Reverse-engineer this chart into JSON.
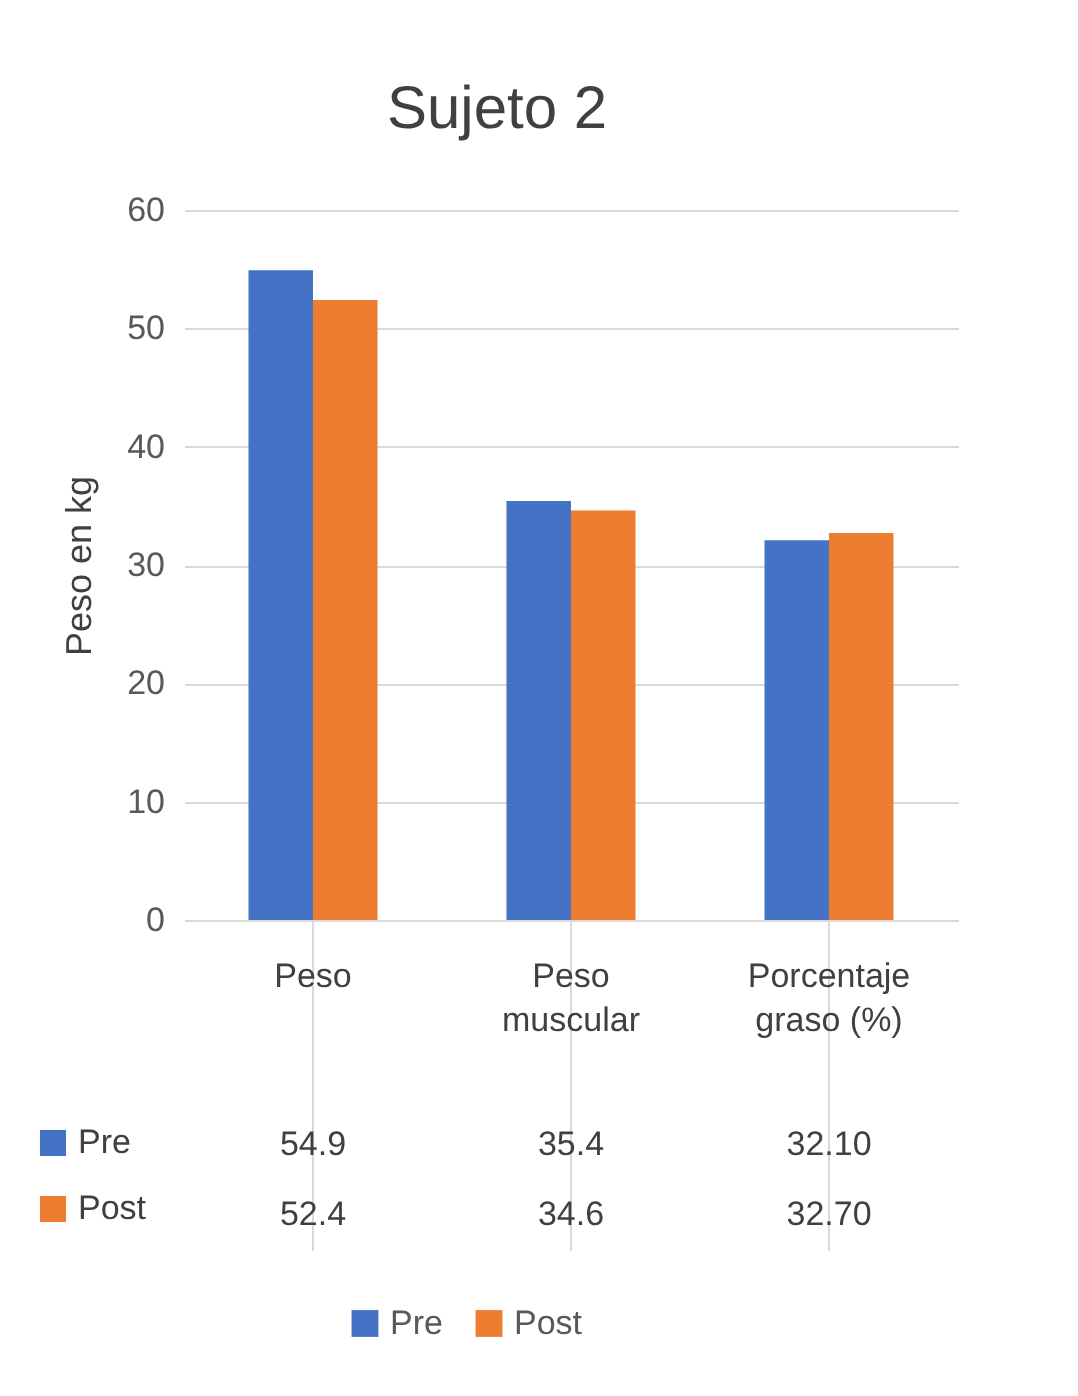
{
  "chart_data": {
    "type": "bar",
    "title": "Sujeto 2",
    "ylabel": "Peso en kg",
    "categories": [
      "Peso",
      "Peso muscular",
      "Porcentaje graso (%)"
    ],
    "series": [
      {
        "name": "Pre",
        "color": "#4472c4",
        "values": [
          54.9,
          35.4,
          32.1
        ],
        "value_labels": [
          "54.9",
          "35.4",
          "32.10"
        ]
      },
      {
        "name": "Post",
        "color": "#ed7d31",
        "values": [
          52.4,
          34.6,
          32.7
        ],
        "value_labels": [
          "52.4",
          "34.6",
          "32.70"
        ]
      }
    ],
    "ylim": [
      0,
      60
    ],
    "yticks": [
      0,
      10,
      20,
      30,
      40,
      50,
      60
    ],
    "grid": "y",
    "legend": "bottom"
  }
}
